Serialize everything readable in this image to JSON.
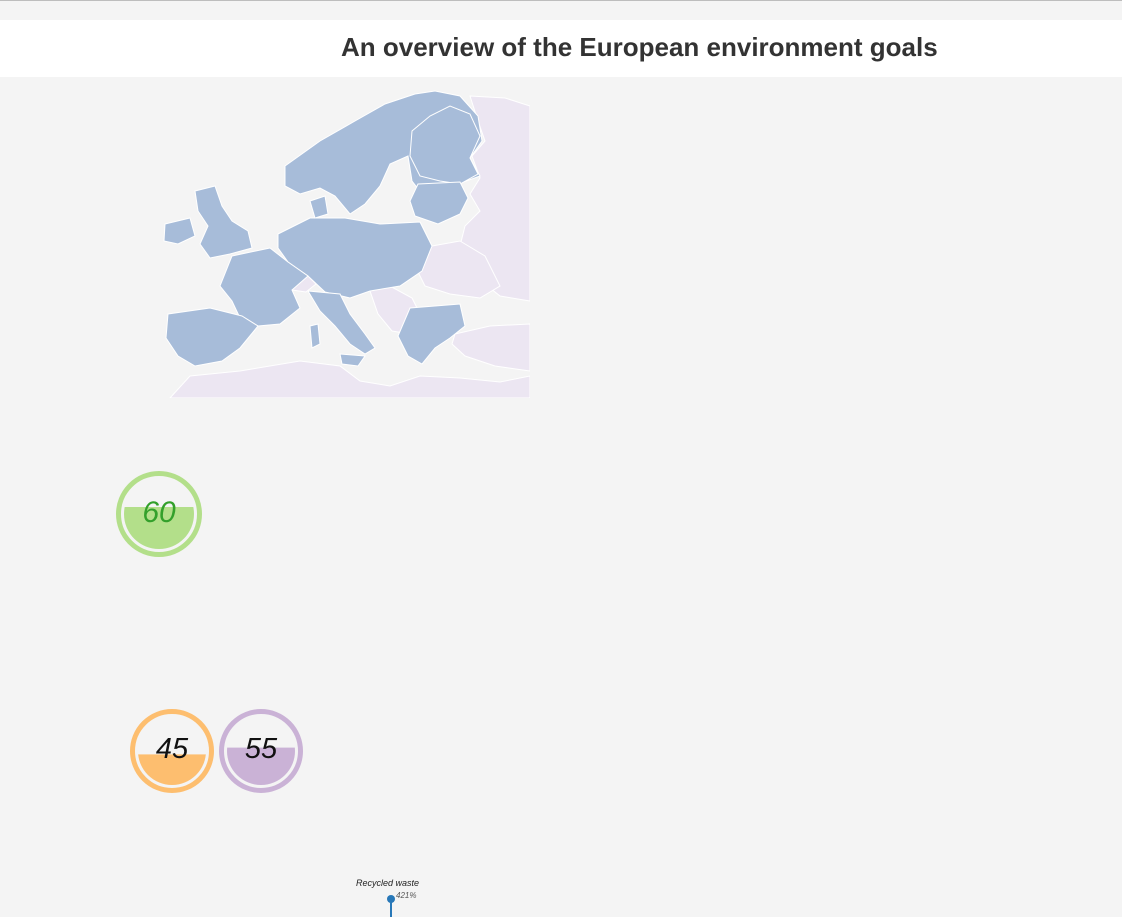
{
  "page": {
    "title": "An overview of the European environment goals"
  },
  "map": {
    "member_color": "#a7bcd9",
    "non_member_color": "#ece6f2",
    "border_color": "#ffffff"
  },
  "gauges": [
    {
      "id": "green",
      "value": "60",
      "level": 0.6,
      "ring_color": "#b3df8a",
      "fill_color": "#b3df8a",
      "text_color": "#33a02b"
    },
    {
      "id": "orange",
      "value": "45",
      "level": 0.45,
      "ring_color": "#fdbe6f",
      "fill_color": "#fdbe6f",
      "text_color": "#ff7f00"
    },
    {
      "id": "purple",
      "value": "55",
      "level": 0.55,
      "ring_color": "#cab2d6",
      "fill_color": "#cab2d6",
      "text_color": "#6a3d9a"
    }
  ],
  "lollipop": {
    "label": "Recycled waste",
    "value": "421%",
    "color": "#2878b8"
  }
}
